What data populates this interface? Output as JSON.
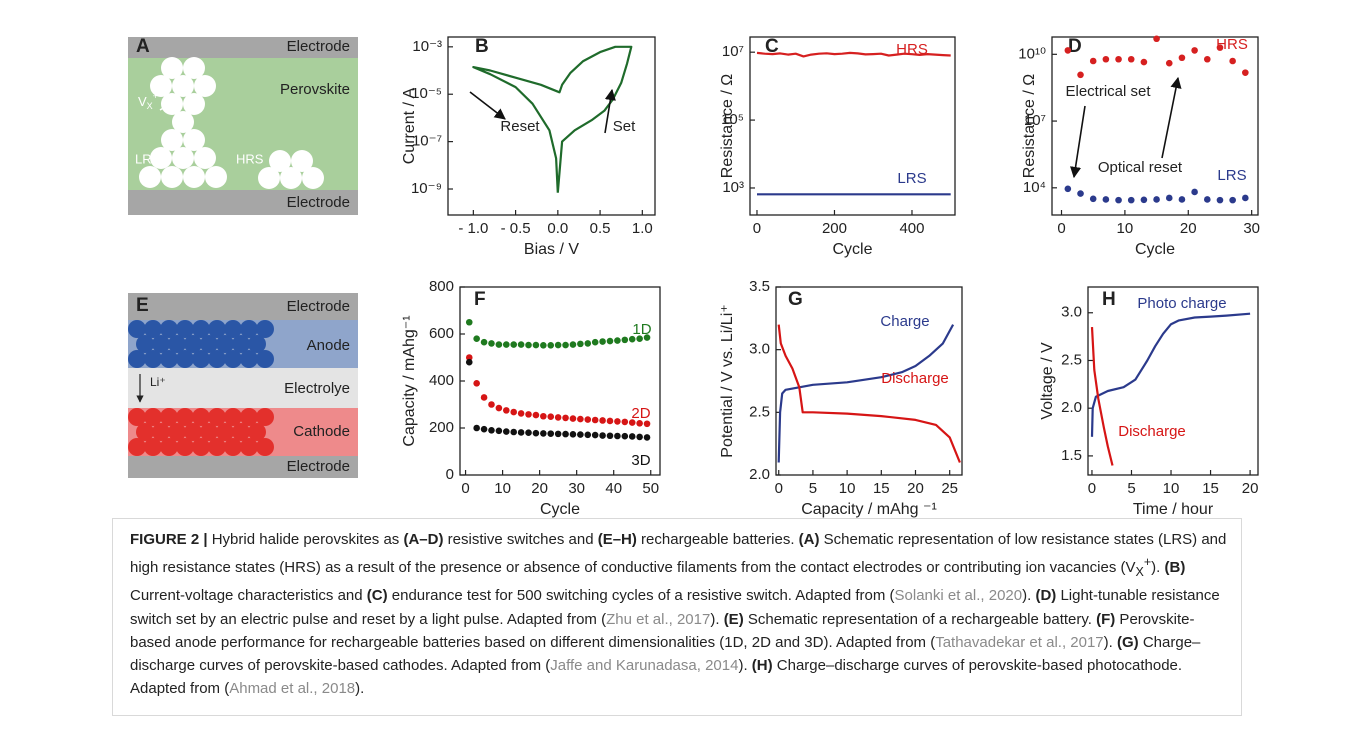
{
  "schematics": {
    "A": {
      "letter": "A",
      "top": "Electrode",
      "middle": "Perovskite",
      "bottom": "Electrode",
      "vacancy": {
        "main": "V",
        "sub": "X",
        "sup": "+"
      },
      "lrs": "LRS",
      "hrs": "HRS"
    },
    "E": {
      "letter": "E",
      "top": "Electrode",
      "anode": "Anode",
      "ion": "Li⁺",
      "electrolyte": "Electrolye",
      "cathode": "Cathode",
      "bottom": "Electrode"
    }
  },
  "chart_data": [
    {
      "type": "line",
      "title": "B",
      "xlabel": "Bias / V",
      "ylabel": "Current / A",
      "ylog": true,
      "xlim": [
        -1.3,
        1.15
      ],
      "ylim": [
        8e-11,
        0.0026
      ],
      "xticks": [
        {
          "value": -1,
          "label": "- 1.0"
        },
        {
          "value": -0.5,
          "label": "- 0.5"
        },
        {
          "value": 0,
          "label": "0.0"
        },
        0.5,
        {
          "value": 1,
          "label": "1.0"
        }
      ],
      "yticks": [
        {
          "value": 1e-09,
          "label": "10⁻⁹"
        },
        {
          "value": 1e-07,
          "label": "10⁻⁷"
        },
        {
          "value": 1e-05,
          "label": "10⁻⁵"
        },
        {
          "value": 0.001,
          "label": "10⁻³"
        }
      ],
      "series": [
        {
          "color": "#1f6b2b",
          "x": [
            0.0,
            0.05,
            0.2,
            0.4,
            0.55,
            0.65,
            0.75,
            0.82,
            0.87,
            0.68,
            0.5,
            0.3,
            0.15,
            0.05,
            0.02,
            -0.2,
            -0.5,
            -0.8,
            -1.0,
            -0.8,
            -0.5,
            -0.3,
            -0.1,
            -0.02,
            0.0
          ],
          "values": [
            7e-10,
            1e-07,
            3e-07,
            8e-07,
            2e-06,
            6e-06,
            3e-05,
            0.0002,
            0.001,
            0.001,
            0.0006,
            0.00025,
            8e-05,
            2.5e-05,
            1.2e-05,
            2.5e-05,
            5e-05,
            0.0001,
            0.00014,
            7e-05,
            2e-05,
            4e-06,
            3e-07,
            2e-08,
            7e-10
          ]
        }
      ],
      "annotations": [
        "Reset",
        "Set"
      ]
    },
    {
      "type": "line",
      "title": "C",
      "xlabel": "Cycle",
      "ylabel": "Resistance / Ω",
      "ylog": true,
      "xlim": [
        -18,
        511
      ],
      "ylim": [
        160,
        28000000
      ],
      "xticks": [
        0,
        200,
        400
      ],
      "yticks": [
        {
          "value": 1000,
          "label": "10³"
        },
        {
          "value": 100000,
          "label": "10⁵"
        },
        {
          "value": 10000000,
          "label": "10⁷"
        }
      ],
      "series": [
        {
          "name": "HRS",
          "color": "#d62020",
          "x": [
            0,
            20,
            40,
            60,
            80,
            100,
            120,
            140,
            160,
            180,
            200,
            220,
            240,
            260,
            280,
            300,
            320,
            340,
            360,
            380,
            400,
            420,
            440,
            460,
            480,
            500
          ],
          "values": [
            9500000,
            9000000,
            8800000,
            9200000,
            8500000,
            9000000,
            7500000,
            8500000,
            9000000,
            9300000,
            8800000,
            9000000,
            9500000,
            9200000,
            8600000,
            8800000,
            9000000,
            8000000,
            8500000,
            9000000,
            8700000,
            8300000,
            8800000,
            8500000,
            8200000,
            8000000
          ]
        },
        {
          "name": "LRS",
          "color": "#2b3a8c",
          "x": [
            0,
            20,
            40,
            60,
            80,
            100,
            120,
            140,
            160,
            180,
            200,
            220,
            240,
            260,
            280,
            300,
            320,
            340,
            360,
            380,
            400,
            420,
            440,
            460,
            480,
            500
          ],
          "values": [
            650,
            650,
            650,
            650,
            650,
            650,
            650,
            650,
            650,
            650,
            650,
            650,
            650,
            650,
            650,
            650,
            650,
            650,
            650,
            650,
            650,
            650,
            650,
            650,
            650,
            650
          ]
        }
      ]
    },
    {
      "type": "scatter",
      "title": "D",
      "xlabel": "Cycle",
      "ylabel": "Resistance / Ω",
      "ylog": true,
      "xlim": [
        -1.5,
        31
      ],
      "ylim": [
        600,
        60000000000
      ],
      "xticks": [
        0,
        10,
        20,
        30
      ],
      "yticks": [
        {
          "value": 10000,
          "label": "10⁴"
        },
        {
          "value": 10000000,
          "label": "10⁷"
        },
        {
          "value": 10000000000,
          "label": "10¹⁰"
        }
      ],
      "x": [
        1,
        3,
        5,
        7,
        9,
        11,
        13,
        15,
        17,
        19,
        21,
        23,
        25,
        27,
        29
      ],
      "series": [
        {
          "name": "HRS",
          "color": "#d62020",
          "values": [
            15000000000,
            1200000000,
            5000000000,
            6000000000,
            6000000000,
            6000000000,
            4500000000,
            50000000000,
            4000000000,
            7000000000,
            15000000000,
            6000000000,
            20000000000,
            5000000000,
            1500000000
          ]
        },
        {
          "name": "LRS",
          "color": "#2b3a8c",
          "values": [
            9000,
            5500,
            3200,
            3000,
            2800,
            2800,
            2900,
            3000,
            3500,
            3000,
            6500,
            3000,
            2800,
            2800,
            3500
          ]
        }
      ],
      "annotations": [
        "Electrical set",
        "Optical reset"
      ]
    },
    {
      "type": "scatter",
      "title": "F",
      "xlabel": "Cycle",
      "ylabel": "Capacity / mAhg⁻¹",
      "xlim": [
        -1.5,
        52.5
      ],
      "ylim": [
        0,
        800
      ],
      "xticks": [
        0,
        10,
        20,
        30,
        40,
        50
      ],
      "yticks": [
        0,
        200,
        400,
        600,
        800
      ],
      "x": [
        1,
        3,
        5,
        7,
        9,
        11,
        13,
        15,
        17,
        19,
        21,
        23,
        25,
        27,
        29,
        31,
        33,
        35,
        37,
        39,
        41,
        43,
        45,
        47,
        49
      ],
      "series": [
        {
          "name": "1D",
          "color": "#1f7a1f",
          "values": [
            650,
            580,
            565,
            560,
            555,
            555,
            555,
            555,
            553,
            553,
            552,
            552,
            553,
            553,
            555,
            558,
            560,
            565,
            568,
            570,
            572,
            575,
            578,
            580,
            585
          ]
        },
        {
          "name": "2D",
          "color": "#d61515",
          "values": [
            500,
            390,
            330,
            300,
            285,
            275,
            268,
            262,
            258,
            255,
            250,
            248,
            245,
            243,
            240,
            238,
            236,
            234,
            232,
            230,
            228,
            226,
            223,
            220,
            218
          ]
        },
        {
          "name": "3D",
          "color": "#111111",
          "values": [
            480,
            200,
            195,
            190,
            188,
            185,
            183,
            181,
            180,
            178,
            177,
            176,
            175,
            174,
            173,
            172,
            171,
            170,
            168,
            167,
            166,
            165,
            164,
            162,
            160
          ]
        }
      ]
    },
    {
      "type": "line",
      "title": "G",
      "xlabel": "Capacity / mAhg ⁻¹",
      "ylabel": "Potential / V vs. Li/Li⁺",
      "xlim": [
        -0.4,
        26.8
      ],
      "ylim": [
        2.0,
        3.5
      ],
      "xticks": [
        0,
        5,
        10,
        15,
        20,
        25
      ],
      "yticks": [
        {
          "value": 2,
          "label": "2.0"
        },
        2.5,
        {
          "value": 3,
          "label": "3.0"
        },
        3.5
      ],
      "series": [
        {
          "name": "Charge",
          "color": "#2b3a8c",
          "x": [
            0,
            0.2,
            0.5,
            1,
            3,
            5,
            10,
            15,
            18,
            20,
            22,
            24,
            25.5
          ],
          "values": [
            2.1,
            2.5,
            2.65,
            2.68,
            2.7,
            2.72,
            2.74,
            2.78,
            2.82,
            2.87,
            2.95,
            3.05,
            3.2
          ]
        },
        {
          "name": "Discharge",
          "color": "#d61515",
          "x": [
            0,
            0.3,
            1,
            2,
            3,
            3.5,
            5,
            10,
            15,
            20,
            23,
            25,
            26.5
          ],
          "values": [
            3.2,
            3.05,
            2.95,
            2.85,
            2.7,
            2.5,
            2.5,
            2.49,
            2.47,
            2.44,
            2.4,
            2.3,
            2.1
          ]
        }
      ]
    },
    {
      "type": "line",
      "title": "H",
      "xlabel": "Time / hour",
      "ylabel": "Voltage / V",
      "xlim": [
        -0.5,
        21
      ],
      "ylim": [
        1.3,
        3.27
      ],
      "xticks": [
        0,
        5,
        10,
        15,
        20
      ],
      "yticks": [
        1.5,
        {
          "value": 2,
          "label": "2.0"
        },
        2.5,
        {
          "value": 3,
          "label": "3.0"
        }
      ],
      "series": [
        {
          "name": "Photo charge",
          "color": "#2b3a8c",
          "x": [
            0,
            0.1,
            0.5,
            2,
            4,
            5.5,
            7,
            8,
            9,
            10,
            11,
            13,
            15,
            17,
            20
          ],
          "values": [
            1.7,
            2.0,
            2.12,
            2.18,
            2.22,
            2.3,
            2.5,
            2.65,
            2.78,
            2.88,
            2.92,
            2.95,
            2.96,
            2.97,
            2.99
          ]
        },
        {
          "name": "Discharge",
          "color": "#d61515",
          "x": [
            0,
            0.3,
            0.8,
            1.5,
            2,
            2.6
          ],
          "values": [
            2.85,
            2.4,
            2.1,
            1.8,
            1.6,
            1.4
          ]
        }
      ]
    }
  ],
  "caption": [
    {
      "text": "FIGURE 2 | ",
      "style": "bold"
    },
    {
      "text": "Hybrid halide perovskites as ",
      "style": "plain"
    },
    {
      "text": "(A–D)",
      "style": "bold"
    },
    {
      "text": " resistive switches and ",
      "style": "plain"
    },
    {
      "text": "(E–H)",
      "style": "bold"
    },
    {
      "text": " rechargeable batteries. ",
      "style": "plain"
    },
    {
      "text": "(A)",
      "style": "bold"
    },
    {
      "text": " Schematic representation of low resistance states (LRS) and high resistance states (HRS) as a result of the presence or absence of conductive filaments from the contact electrodes or contributing ion vacancies (V",
      "style": "plain"
    },
    {
      "text": "X",
      "style": "sub"
    },
    {
      "text": "+",
      "style": "sup"
    },
    {
      "text": "). ",
      "style": "plain"
    },
    {
      "text": "(B)",
      "style": "bold"
    },
    {
      "text": " Current-voltage characteristics and ",
      "style": "plain"
    },
    {
      "text": "(C)",
      "style": "bold"
    },
    {
      "text": " endurance test for 500 switching cycles of a resistive switch. Adapted from (",
      "style": "plain"
    },
    {
      "text": "Solanki et al., 2020",
      "style": "link"
    },
    {
      "text": "). ",
      "style": "plain"
    },
    {
      "text": "(D)",
      "style": "bold"
    },
    {
      "text": " Light-tunable resistance switch set by an electric pulse and reset by a light pulse. Adapted from (",
      "style": "plain"
    },
    {
      "text": "Zhu et al., 2017",
      "style": "link"
    },
    {
      "text": "). ",
      "style": "plain"
    },
    {
      "text": "(E)",
      "style": "bold"
    },
    {
      "text": " Schematic representation of a rechargeable battery. ",
      "style": "plain"
    },
    {
      "text": "(F)",
      "style": "bold"
    },
    {
      "text": " Perovskite-based anode performance for rechargeable batteries based on different dimensionalities (1D, 2D and 3D). Adapted from (",
      "style": "plain"
    },
    {
      "text": "Tathavadekar et al., 2017",
      "style": "link"
    },
    {
      "text": "). ",
      "style": "plain"
    },
    {
      "text": "(G)",
      "style": "bold"
    },
    {
      "text": " Charge–discharge curves of perovskite-based cathodes. Adapted from (",
      "style": "plain"
    },
    {
      "text": "Jaffe and Karunadasa, 2014",
      "style": "link"
    },
    {
      "text": "). ",
      "style": "plain"
    },
    {
      "text": "(H)",
      "style": "bold"
    },
    {
      "text": " Charge–discharge curves of perovskite-based photocathode. Adapted from (",
      "style": "plain"
    },
    {
      "text": "Ahmad et al., 2018",
      "style": "link"
    },
    {
      "text": ").",
      "style": "plain"
    }
  ]
}
